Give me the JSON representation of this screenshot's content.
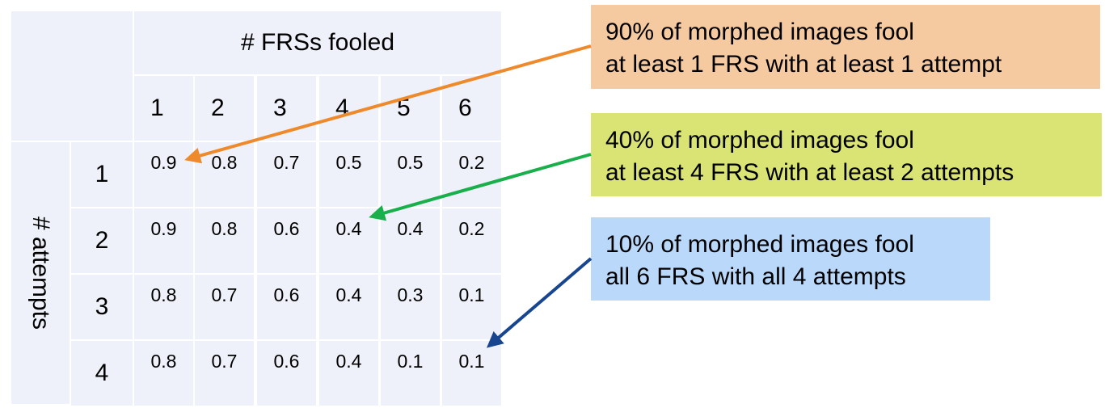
{
  "chart_data": {
    "type": "table",
    "column_header": "# FRSs fooled",
    "row_header": "# attempts",
    "columns": [
      "1",
      "2",
      "3",
      "4",
      "5",
      "6"
    ],
    "rows": [
      "1",
      "2",
      "3",
      "4"
    ],
    "values": [
      [
        "0.9",
        "0.8",
        "0.7",
        "0.5",
        "0.5",
        "0.2"
      ],
      [
        "0.9",
        "0.8",
        "0.6",
        "0.4",
        "0.4",
        "0.2"
      ],
      [
        "0.8",
        "0.7",
        "0.6",
        "0.4",
        "0.3",
        "0.1"
      ],
      [
        "0.8",
        "0.7",
        "0.6",
        "0.4",
        "0.1",
        "0.1"
      ]
    ]
  },
  "callouts": [
    {
      "lines": [
        "90% of morphed images fool",
        "at least 1 FRS with at least 1 attempt"
      ],
      "color": "#f6caa0",
      "arrow_color": "#ee8a2b",
      "target": {
        "row": 0,
        "col": 0
      }
    },
    {
      "lines": [
        "40% of morphed images fool",
        "at least 4 FRS with at least 2 attempts"
      ],
      "color": "#d9e474",
      "arrow_color": "#19b04c",
      "target": {
        "row": 1,
        "col": 3
      }
    },
    {
      "lines": [
        "10% of morphed images fool",
        "all 6 FRS with all 4 attempts"
      ],
      "color": "#bad8fa",
      "arrow_color": "#17458f",
      "target": {
        "row": 3,
        "col": 5
      }
    }
  ]
}
